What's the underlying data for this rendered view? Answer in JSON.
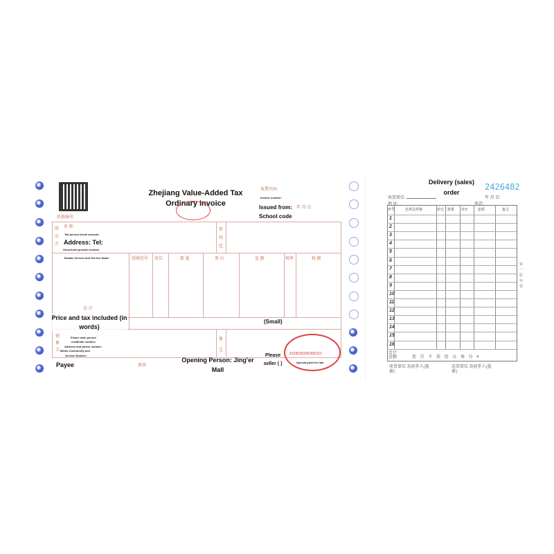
{
  "invoice": {
    "title": "Zhejiang Value-Added Tax Ordinary Invoice",
    "invoice_code_label": "发票代码:",
    "invoice_number_label": "Invoice number:",
    "issued_from": "Issued from:",
    "school_code": "School code",
    "date_label": "年  月  日",
    "machine_number": "机器编号:",
    "buyer_side": "购买方",
    "name_label": "名    称:",
    "taxpayer_account": "Tall person brush account",
    "address_tel": "Address: Tel:",
    "household_number": "Household product number",
    "password_area": "密码区",
    "columns": [
      "Taxable Service and Service Name",
      "规格型号",
      "单位",
      "数 量",
      "单 价",
      "金 额",
      "税率",
      "税 额"
    ],
    "total_label": "合 计",
    "price_tax_words": "Price and tax included (in words)",
    "small": "(Small)",
    "seller_side": "销售方",
    "seller_taxpayer": "Please wish person certificate number:",
    "seller_address": "Address and phone number:",
    "seller_bank": "Meihu Community and",
    "service_number": "Service Number:",
    "notes": "备注",
    "payee": "Payee",
    "reviewer": "复核:",
    "opening_person": "Opening Person: Jing'er Mall",
    "please_seller": "Please seller ( )",
    "stamp_number": "91330183281682112",
    "stamp_text": "Special point for hair",
    "colors": {
      "line": "#d9a9a5",
      "stamp": "#e04040",
      "hole": "#2a3fb0"
    }
  },
  "delivery": {
    "title": "Delivery (sales) order",
    "serial": "2426482",
    "receiver_label": "收货单位:",
    "address_label": "地    址:",
    "date_label": "年  月  日",
    "phone_label": "电话:",
    "columns": [
      "序号",
      "名称及规格",
      "单位",
      "数量",
      "单价",
      "金额",
      "备注"
    ],
    "rows": [
      "1",
      "2",
      "3",
      "4",
      "5",
      "6",
      "7",
      "8",
      "9",
      "10",
      "11",
      "12",
      "13",
      "14",
      "15",
      "16"
    ],
    "total_label": "合计金额",
    "total_units": "拾 万 千 佰 拾 元 角 分 ¥",
    "receiver_sign": "收货单位 及经手人(盖章):",
    "sender_sign": "送货单位 及经手人(盖章):",
    "side_note": "第一联 存根",
    "serial_color": "#4aa8d8"
  }
}
